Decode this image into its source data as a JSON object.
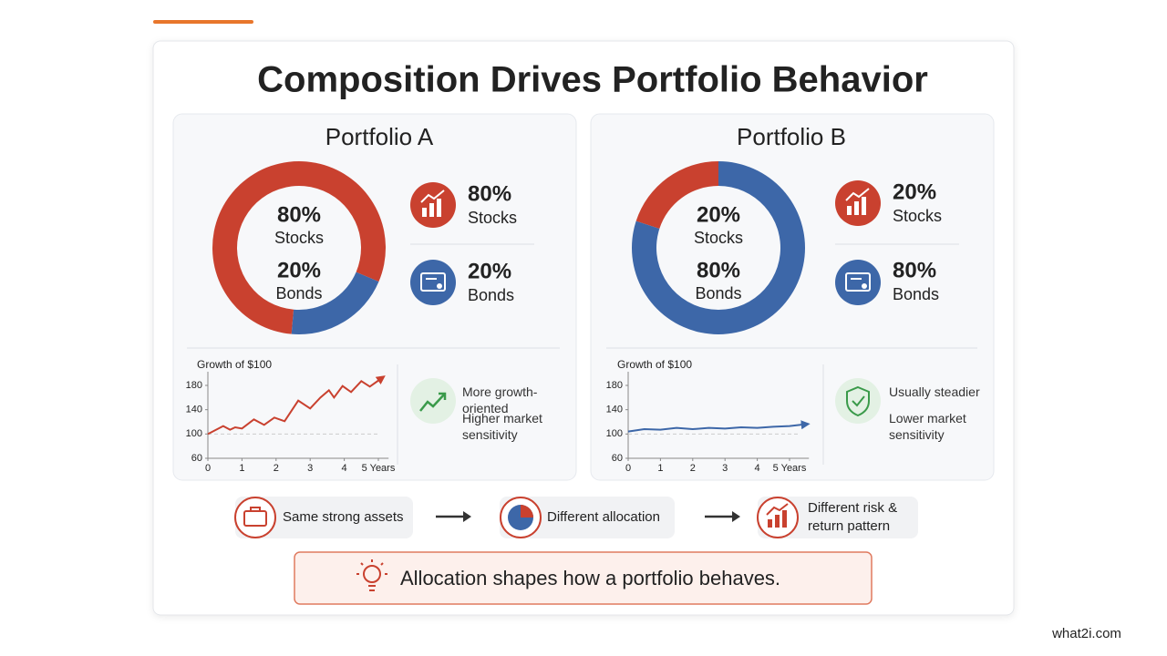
{
  "title": "Composition Drives Portfolio Behavior",
  "chart_data": [
    {
      "type": "pie",
      "title": "Portfolio A",
      "categories": [
        "Stocks",
        "Bonds"
      ],
      "values": [
        80,
        20
      ],
      "value_labels": [
        "80%",
        "20%"
      ],
      "colors": [
        "#c9412f",
        "#3d67a8"
      ]
    },
    {
      "type": "line",
      "title": "Growth of $100",
      "x": [
        0,
        0.45,
        0.65,
        0.8,
        1,
        1.35,
        1.65,
        1.95,
        2.25,
        2.65,
        3,
        3.3,
        3.55,
        3.7,
        3.95,
        4.2,
        4.5,
        4.75,
        5.1
      ],
      "xlim": [
        0,
        5.3
      ],
      "xticks": [
        0,
        1,
        2,
        3,
        4,
        {
          "value": 5,
          "label": "5 Years"
        }
      ],
      "ylim": [
        60,
        195
      ],
      "yticks": [
        60,
        100,
        140,
        180
      ],
      "series": [
        {
          "color": "#c9412f",
          "values": [
            100,
            113,
            107,
            111,
            109,
            124,
            115,
            127,
            121,
            155,
            142,
            160,
            172,
            160,
            179,
            169,
            187,
            178,
            192
          ]
        }
      ]
    },
    {
      "type": "pie",
      "title": "Portfolio B",
      "categories": [
        "Stocks",
        "Bonds"
      ],
      "values": [
        20,
        80
      ],
      "value_labels": [
        "20%",
        "80%"
      ],
      "colors": [
        "#c9412f",
        "#3d67a8"
      ]
    },
    {
      "type": "line",
      "title": "Growth of $100",
      "x": [
        0,
        0.5,
        1,
        1.5,
        2,
        2.5,
        3,
        3.5,
        4,
        4.5,
        5,
        5.5
      ],
      "xlim": [
        0,
        5.6
      ],
      "xticks": [
        0,
        1,
        2,
        3,
        4,
        {
          "value": 5,
          "label": "5 Years"
        }
      ],
      "ylim": [
        60,
        195
      ],
      "yticks": [
        60,
        100,
        140,
        180
      ],
      "series": [
        {
          "color": "#3d67a8",
          "values": [
            104,
            108,
            107,
            110,
            108,
            110,
            109,
            111,
            110,
            112,
            113,
            116
          ]
        }
      ]
    }
  ],
  "notes": [
    [
      "More growth-oriented",
      "Higher market sensitivity"
    ],
    [
      "Usually steadier",
      "Lower market sensitivity"
    ]
  ],
  "flow": [
    "Same strong assets",
    "Different allocation",
    "Different risk & return pattern"
  ],
  "takeaway": "Allocation shapes how a portfolio behaves.",
  "watermark": "what2i.com"
}
